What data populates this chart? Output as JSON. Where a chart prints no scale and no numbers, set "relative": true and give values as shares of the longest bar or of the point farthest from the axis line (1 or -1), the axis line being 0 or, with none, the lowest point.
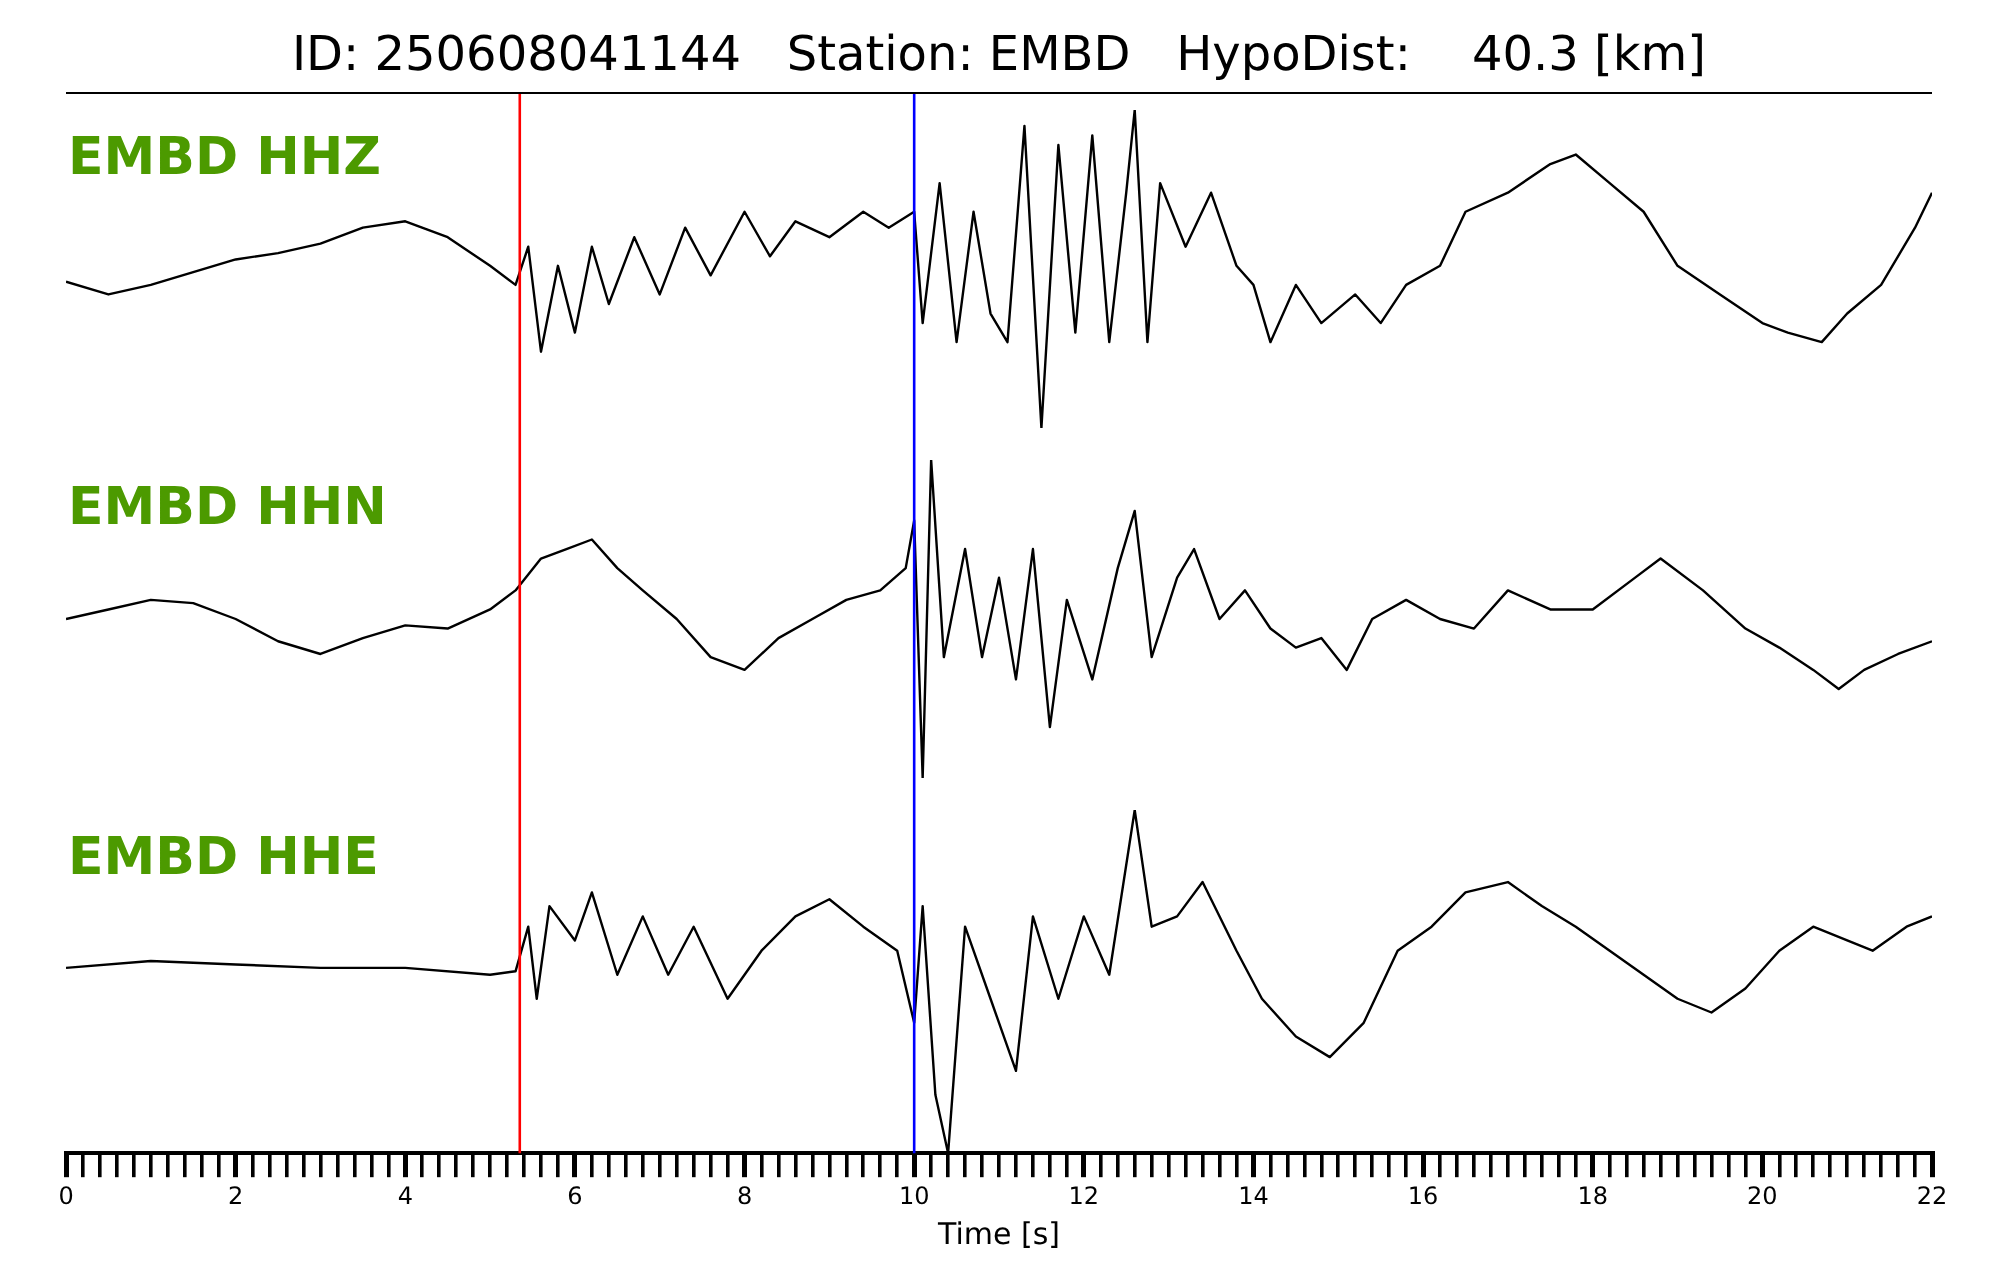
{
  "chart_data": [
    {
      "type": "line",
      "title": "ID: 250608041144   Station: EMBD   HypoDist:    40.3 [km]",
      "relative": true,
      "xlim": [
        0,
        22
      ],
      "tick_labels": false,
      "annotations": [
        "EMBD HHZ"
      ],
      "ref_lines": [
        {
          "axis": "x",
          "value": 5.35,
          "color": "#ff0000"
        },
        {
          "axis": "x",
          "value": 10.0,
          "color": "#0000ff"
        }
      ],
      "series": [
        {
          "color": "#000000",
          "x": [
            0,
            0.5,
            1,
            1.5,
            2,
            2.5,
            3,
            3.5,
            4,
            4.5,
            5,
            5.3,
            5.45,
            5.6,
            5.8,
            6,
            6.2,
            6.4,
            6.7,
            7,
            7.3,
            7.6,
            8,
            8.3,
            8.6,
            9,
            9.4,
            9.7,
            10,
            10.1,
            10.3,
            10.5,
            10.7,
            10.9,
            11.1,
            11.3,
            11.5,
            11.7,
            11.9,
            12.1,
            12.3,
            12.5,
            12.6,
            12.75,
            12.9,
            13.2,
            13.5,
            13.8,
            14,
            14.2,
            14.5,
            14.8,
            15.2,
            15.5,
            15.8,
            16.2,
            16.5,
            17,
            17.5,
            17.8,
            18.2,
            18.6,
            19,
            19.5,
            20,
            20.3,
            20.7,
            21,
            21.4,
            21.8,
            22
          ],
          "values": [
            0.46,
            0.42,
            0.45,
            0.49,
            0.53,
            0.55,
            0.58,
            0.63,
            0.65,
            0.6,
            0.51,
            0.45,
            0.57,
            0.24,
            0.51,
            0.3,
            0.57,
            0.39,
            0.6,
            0.42,
            0.63,
            0.48,
            0.68,
            0.54,
            0.65,
            0.6,
            0.68,
            0.63,
            0.68,
            0.33,
            0.77,
            0.27,
            0.68,
            0.36,
            0.27,
            0.95,
            0,
            0.89,
            0.3,
            0.92,
            0.27,
            0.74,
            1,
            0.27,
            0.77,
            0.57,
            0.74,
            0.51,
            0.45,
            0.27,
            0.45,
            0.33,
            0.42,
            0.33,
            0.45,
            0.51,
            0.68,
            0.74,
            0.83,
            0.86,
            0.77,
            0.68,
            0.51,
            0.42,
            0.33,
            0.3,
            0.27,
            0.36,
            0.45,
            0.63,
            0.74
          ]
        }
      ]
    },
    {
      "type": "line",
      "relative": true,
      "xlim": [
        0,
        22
      ],
      "tick_labels": false,
      "annotations": [
        "EMBD HHN"
      ],
      "ref_lines": [
        {
          "axis": "x",
          "value": 5.35,
          "color": "#ff0000"
        },
        {
          "axis": "x",
          "value": 10.0,
          "color": "#0000ff"
        }
      ],
      "series": [
        {
          "color": "#000000",
          "x": [
            0,
            0.5,
            1,
            1.5,
            2,
            2.5,
            3,
            3.5,
            4,
            4.5,
            5,
            5.3,
            5.6,
            5.9,
            6.2,
            6.5,
            6.8,
            7.2,
            7.6,
            8,
            8.4,
            8.8,
            9.2,
            9.6,
            9.9,
            10,
            10.1,
            10.2,
            10.35,
            10.6,
            10.8,
            11,
            11.2,
            11.4,
            11.6,
            11.8,
            12.1,
            12.4,
            12.6,
            12.8,
            13.1,
            13.3,
            13.6,
            13.9,
            14.2,
            14.5,
            14.8,
            15.1,
            15.4,
            15.8,
            16.2,
            16.6,
            17,
            17.5,
            18,
            18.5,
            18.8,
            19.3,
            19.8,
            20.2,
            20.6,
            20.9,
            21.2,
            21.6,
            22
          ],
          "values": [
            0.5,
            0.53,
            0.56,
            0.55,
            0.5,
            0.43,
            0.39,
            0.44,
            0.48,
            0.47,
            0.53,
            0.59,
            0.69,
            0.72,
            0.75,
            0.66,
            0.59,
            0.5,
            0.38,
            0.34,
            0.44,
            0.5,
            0.56,
            0.59,
            0.66,
            0.81,
            0,
            1,
            0.38,
            0.72,
            0.38,
            0.63,
            0.31,
            0.72,
            0.16,
            0.56,
            0.31,
            0.66,
            0.84,
            0.38,
            0.63,
            0.72,
            0.5,
            0.59,
            0.47,
            0.41,
            0.44,
            0.34,
            0.5,
            0.56,
            0.5,
            0.47,
            0.59,
            0.53,
            0.53,
            0.63,
            0.69,
            0.59,
            0.47,
            0.41,
            0.34,
            0.28,
            0.34,
            0.39,
            0.43
          ]
        }
      ]
    },
    {
      "type": "line",
      "relative": true,
      "xlim": [
        0,
        22
      ],
      "tick_labels": "x",
      "xlabel": "Time [s]",
      "annotations": [
        "EMBD HHE"
      ],
      "xticks": [
        0,
        {
          "value": 0.2,
          "label": null
        },
        {
          "value": 0.4,
          "label": null
        },
        {
          "value": 0.6,
          "label": null
        },
        {
          "value": 0.8,
          "label": null
        },
        {
          "value": 1,
          "label": null
        },
        {
          "value": 1.2,
          "label": null
        },
        {
          "value": 1.4,
          "label": null
        },
        {
          "value": 1.6,
          "label": null
        },
        {
          "value": 1.8,
          "label": null
        },
        2,
        {
          "value": 2.2,
          "label": null
        },
        {
          "value": 2.4,
          "label": null
        },
        {
          "value": 2.6,
          "label": null
        },
        {
          "value": 2.8,
          "label": null
        },
        {
          "value": 3,
          "label": null
        },
        {
          "value": 3.2,
          "label": null
        },
        {
          "value": 3.4,
          "label": null
        },
        {
          "value": 3.6,
          "label": null
        },
        {
          "value": 3.8,
          "label": null
        },
        4,
        {
          "value": 4.2,
          "label": null
        },
        {
          "value": 4.4,
          "label": null
        },
        {
          "value": 4.6,
          "label": null
        },
        {
          "value": 4.8,
          "label": null
        },
        {
          "value": 5,
          "label": null
        },
        {
          "value": 5.2,
          "label": null
        },
        {
          "value": 5.4,
          "label": null
        },
        {
          "value": 5.6,
          "label": null
        },
        {
          "value": 5.8,
          "label": null
        },
        6,
        {
          "value": 6.2,
          "label": null
        },
        {
          "value": 6.4,
          "label": null
        },
        {
          "value": 6.6,
          "label": null
        },
        {
          "value": 6.8,
          "label": null
        },
        {
          "value": 7,
          "label": null
        },
        {
          "value": 7.2,
          "label": null
        },
        {
          "value": 7.4,
          "label": null
        },
        {
          "value": 7.6,
          "label": null
        },
        {
          "value": 7.8,
          "label": null
        },
        8,
        {
          "value": 8.2,
          "label": null
        },
        {
          "value": 8.4,
          "label": null
        },
        {
          "value": 8.6,
          "label": null
        },
        {
          "value": 8.8,
          "label": null
        },
        {
          "value": 9,
          "label": null
        },
        {
          "value": 9.2,
          "label": null
        },
        {
          "value": 9.4,
          "label": null
        },
        {
          "value": 9.6,
          "label": null
        },
        {
          "value": 9.8,
          "label": null
        },
        10,
        {
          "value": 10.2,
          "label": null
        },
        {
          "value": 10.4,
          "label": null
        },
        {
          "value": 10.6,
          "label": null
        },
        {
          "value": 10.8,
          "label": null
        },
        {
          "value": 11,
          "label": null
        },
        {
          "value": 11.2,
          "label": null
        },
        {
          "value": 11.4,
          "label": null
        },
        {
          "value": 11.6,
          "label": null
        },
        {
          "value": 11.8,
          "label": null
        },
        12,
        {
          "value": 12.2,
          "label": null
        },
        {
          "value": 12.4,
          "label": null
        },
        {
          "value": 12.6,
          "label": null
        },
        {
          "value": 12.8,
          "label": null
        },
        {
          "value": 13,
          "label": null
        },
        {
          "value": 13.2,
          "label": null
        },
        {
          "value": 13.4,
          "label": null
        },
        {
          "value": 13.6,
          "label": null
        },
        {
          "value": 13.8,
          "label": null
        },
        14,
        {
          "value": 14.2,
          "label": null
        },
        {
          "value": 14.4,
          "label": null
        },
        {
          "value": 14.6,
          "label": null
        },
        {
          "value": 14.8,
          "label": null
        },
        {
          "value": 15,
          "label": null
        },
        {
          "value": 15.2,
          "label": null
        },
        {
          "value": 15.4,
          "label": null
        },
        {
          "value": 15.6,
          "label": null
        },
        {
          "value": 15.8,
          "label": null
        },
        16,
        {
          "value": 16.2,
          "label": null
        },
        {
          "value": 16.4,
          "label": null
        },
        {
          "value": 16.6,
          "label": null
        },
        {
          "value": 16.8,
          "label": null
        },
        {
          "value": 17,
          "label": null
        },
        {
          "value": 17.2,
          "label": null
        },
        {
          "value": 17.4,
          "label": null
        },
        {
          "value": 17.6,
          "label": null
        },
        {
          "value": 17.8,
          "label": null
        },
        18,
        {
          "value": 18.2,
          "label": null
        },
        {
          "value": 18.4,
          "label": null
        },
        {
          "value": 18.6,
          "label": null
        },
        {
          "value": 18.8,
          "label": null
        },
        {
          "value": 19,
          "label": null
        },
        {
          "value": 19.2,
          "label": null
        },
        {
          "value": 19.4,
          "label": null
        },
        {
          "value": 19.6,
          "label": null
        },
        {
          "value": 19.8,
          "label": null
        },
        20,
        {
          "value": 20.2,
          "label": null
        },
        {
          "value": 20.4,
          "label": null
        },
        {
          "value": 20.6,
          "label": null
        },
        {
          "value": 20.8,
          "label": null
        },
        {
          "value": 21,
          "label": null
        },
        {
          "value": 21.2,
          "label": null
        },
        {
          "value": 21.4,
          "label": null
        },
        {
          "value": 21.6,
          "label": null
        },
        {
          "value": 21.8,
          "label": null
        },
        22
      ],
      "ref_lines": [
        {
          "axis": "x",
          "value": 5.35,
          "color": "#ff0000"
        },
        {
          "axis": "x",
          "value": 10.0,
          "color": "#0000ff"
        }
      ],
      "series": [
        {
          "color": "#000000",
          "x": [
            0,
            1,
            2,
            3,
            4,
            5,
            5.3,
            5.45,
            5.55,
            5.7,
            6,
            6.2,
            6.5,
            6.8,
            7.1,
            7.4,
            7.8,
            8.2,
            8.6,
            9,
            9.4,
            9.8,
            10,
            10.1,
            10.25,
            10.4,
            10.6,
            10.9,
            11.2,
            11.4,
            11.7,
            12,
            12.3,
            12.6,
            12.8,
            13.1,
            13.4,
            13.8,
            14.1,
            14.5,
            14.9,
            15.3,
            15.7,
            16.1,
            16.5,
            17,
            17.4,
            17.8,
            18.2,
            18.6,
            19,
            19.4,
            19.8,
            20.2,
            20.6,
            21,
            21.3,
            21.7,
            22
          ],
          "values": [
            0.54,
            0.56,
            0.55,
            0.54,
            0.54,
            0.52,
            0.53,
            0.66,
            0.45,
            0.72,
            0.62,
            0.76,
            0.52,
            0.69,
            0.52,
            0.66,
            0.45,
            0.59,
            0.69,
            0.74,
            0.66,
            0.59,
            0.38,
            0.72,
            0.17,
            0,
            0.66,
            0.45,
            0.24,
            0.69,
            0.45,
            0.69,
            0.52,
            1,
            0.66,
            0.69,
            0.79,
            0.59,
            0.45,
            0.34,
            0.28,
            0.38,
            0.59,
            0.66,
            0.76,
            0.79,
            0.72,
            0.66,
            0.59,
            0.52,
            0.45,
            0.41,
            0.48,
            0.59,
            0.66,
            0.62,
            0.59,
            0.66,
            0.69
          ]
        }
      ]
    }
  ]
}
